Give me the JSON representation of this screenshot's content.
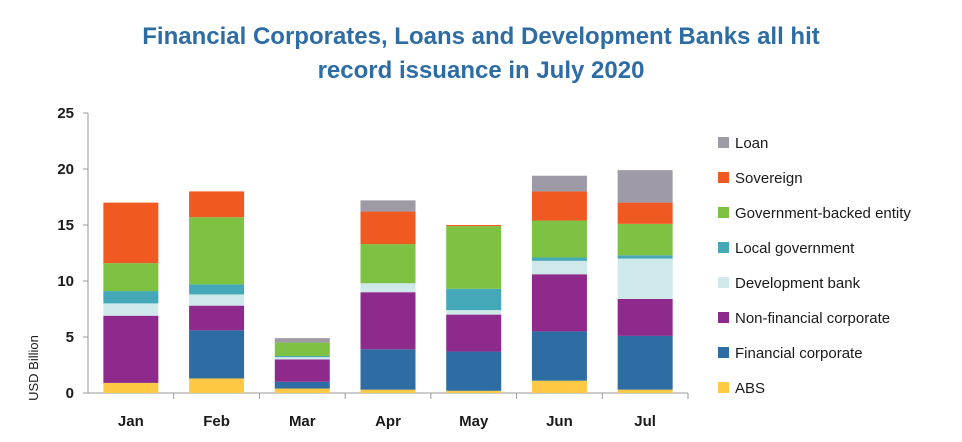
{
  "colors": {
    "title": "#2e6ca4",
    "axis": "#999999"
  },
  "chart_data": {
    "type": "bar",
    "stacked": true,
    "title": "Financial Corporates, Loans and Development Banks all hit record issuance in July 2020",
    "title_lines": [
      "Financial Corporates, Loans and Development Banks all hit",
      "record issuance in July 2020"
    ],
    "xlabel": "",
    "ylabel": "USD Billion",
    "ylim": [
      0,
      25
    ],
    "yticks": [
      0,
      5,
      10,
      15,
      20,
      25
    ],
    "grid": false,
    "legend_position": "right",
    "categories": [
      "Jan",
      "Feb",
      "Mar",
      "Apr",
      "May",
      "Jun",
      "Jul"
    ],
    "series": [
      {
        "name": "ABS",
        "color": "#ffc845",
        "values": [
          0.9,
          1.3,
          0.4,
          0.3,
          0.2,
          1.1,
          0.3
        ]
      },
      {
        "name": "Financial corporate",
        "color": "#2e6ca4",
        "values": [
          0.0,
          4.3,
          0.6,
          3.6,
          3.5,
          4.4,
          4.8
        ]
      },
      {
        "name": "Non-financial corporate",
        "color": "#8e2a8c",
        "values": [
          6.0,
          2.2,
          2.0,
          5.1,
          3.3,
          5.1,
          3.3
        ]
      },
      {
        "name": "Development bank",
        "color": "#cfe8ea",
        "values": [
          1.1,
          1.0,
          0.2,
          0.8,
          0.4,
          1.2,
          3.6
        ]
      },
      {
        "name": "Local government",
        "color": "#44a8b8",
        "values": [
          1.1,
          0.9,
          0.1,
          0.0,
          1.9,
          0.3,
          0.3
        ]
      },
      {
        "name": "Government-backed entity",
        "color": "#7dc242",
        "values": [
          2.5,
          6.0,
          1.2,
          3.5,
          5.6,
          3.3,
          2.8
        ]
      },
      {
        "name": "Sovereign",
        "color": "#f05a22",
        "values": [
          5.4,
          2.3,
          0.0,
          2.9,
          0.1,
          2.6,
          1.9
        ]
      },
      {
        "name": "Loan",
        "color": "#9e9aa6",
        "values": [
          0.0,
          0.0,
          0.4,
          1.0,
          0.0,
          1.4,
          2.9
        ]
      }
    ]
  }
}
